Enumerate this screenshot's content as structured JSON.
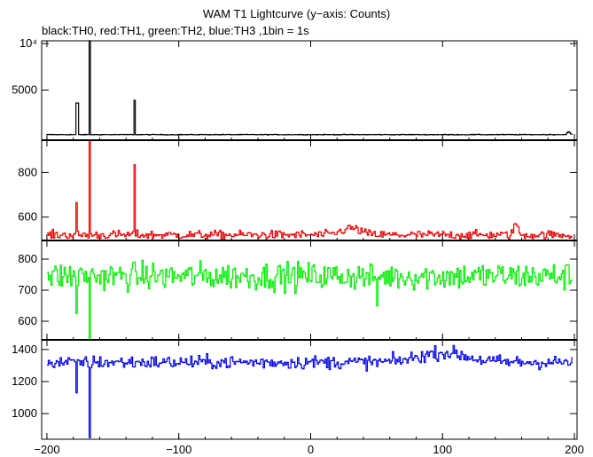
{
  "title": "WAM T1 Lightcurve (y−axis: Counts)",
  "subtitle": "black:TH0, red:TH1, green:TH2, blue:TH3 ,1bin = 1s",
  "chart_data": {
    "type": "line",
    "x_range": [
      -204,
      202
    ],
    "x_ticks": [
      {
        "value": -200,
        "label": "−200"
      },
      {
        "value": -100,
        "label": "−100"
      },
      {
        "value": 0,
        "label": "0"
      },
      {
        "value": 100,
        "label": "100"
      },
      {
        "value": 200,
        "label": "200"
      }
    ],
    "panels": [
      {
        "name": "TH0",
        "color": "#000000",
        "ylim": [
          -400,
          10300
        ],
        "y_ticks": [
          {
            "value": 10000,
            "label": "10⁴"
          },
          {
            "value": 5000,
            "label": "5000"
          }
        ],
        "baseline": 200,
        "noise": 25,
        "spikes": [
          [
            -178,
            3600
          ],
          [
            -177,
            3600
          ],
          [
            -168,
            10300
          ],
          [
            -134,
            3900
          ]
        ],
        "humps": [
          [
            195,
            500,
            1.5
          ]
        ]
      },
      {
        "name": "TH1",
        "color": "#ee0000",
        "ylim": [
          495,
          945
        ],
        "y_ticks": [
          {
            "value": 800,
            "label": "800"
          },
          {
            "value": 600,
            "label": "600"
          }
        ],
        "baseline": 520,
        "noise": 14,
        "spikes": [
          [
            -178,
            665
          ],
          [
            -168,
            945
          ],
          [
            -134,
            835
          ]
        ],
        "humps": [
          [
            155,
            575,
            2.0
          ],
          [
            30,
            550,
            10
          ]
        ]
      },
      {
        "name": "TH2",
        "color": "#00ee00",
        "ylim": [
          540,
          860
        ],
        "y_ticks": [
          {
            "value": 800,
            "label": "800"
          },
          {
            "value": 700,
            "label": "700"
          },
          {
            "value": 600,
            "label": "600"
          }
        ],
        "baseline": 745,
        "noise": 32,
        "spikes": [
          [
            -168,
            545
          ],
          [
            -178,
            625
          ],
          [
            50,
            650
          ]
        ],
        "humps": []
      },
      {
        "name": "TH3",
        "color": "#0000ee",
        "ylim": [
          840,
          1460
        ],
        "y_ticks": [
          {
            "value": 1400,
            "label": "1400"
          },
          {
            "value": 1200,
            "label": "1200"
          },
          {
            "value": 1000,
            "label": "1000"
          }
        ],
        "baseline": 1320,
        "noise": 30,
        "spikes": [
          [
            -168,
            850
          ],
          [
            -178,
            1130
          ]
        ],
        "humps": [
          [
            100,
            1380,
            25
          ]
        ]
      }
    ]
  }
}
